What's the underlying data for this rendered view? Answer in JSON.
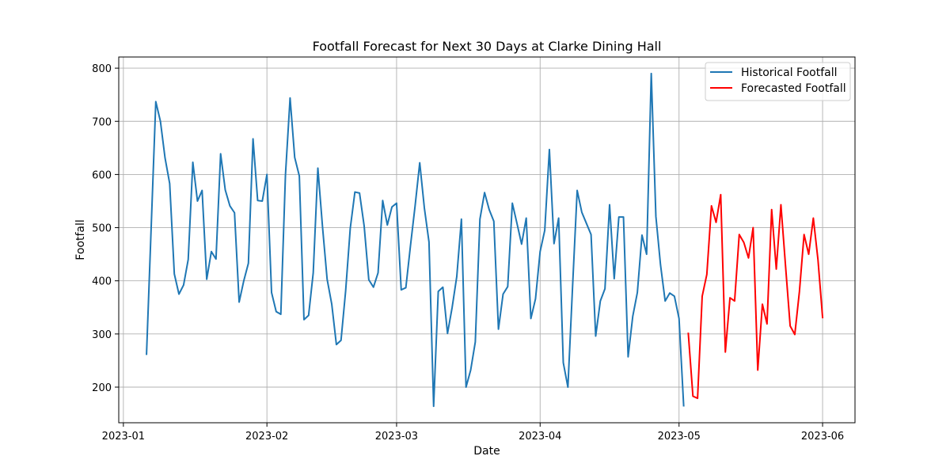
{
  "chart_data": {
    "type": "line",
    "title": "Footfall Forecast for Next 30 Days at Clarke Dining Hall",
    "xlabel": "Date",
    "ylabel": "Footfall",
    "xlim": [
      "2022-12-31",
      "2023-06-08"
    ],
    "ylim": [
      133,
      821
    ],
    "xticks": [
      "2023-01-01",
      "2023-02-01",
      "2023-03-01",
      "2023-04-01",
      "2023-05-01",
      "2023-06-01"
    ],
    "xtick_labels": [
      "2023-01",
      "2023-02",
      "2023-03",
      "2023-04",
      "2023-05",
      "2023-06"
    ],
    "yticks": [
      200,
      300,
      400,
      500,
      600,
      700,
      800
    ],
    "grid": true,
    "legend_position": "top-right",
    "series": [
      {
        "name": "Historical Footfall",
        "color": "#1f77b4",
        "points": [
          [
            "2023-01-06",
            262
          ],
          [
            "2023-01-08",
            737
          ],
          [
            "2023-01-09",
            700
          ],
          [
            "2023-01-10",
            631
          ],
          [
            "2023-01-11",
            583
          ],
          [
            "2023-01-12",
            413
          ],
          [
            "2023-01-13",
            375
          ],
          [
            "2023-01-14",
            392
          ],
          [
            "2023-01-15",
            440
          ],
          [
            "2023-01-16",
            623
          ],
          [
            "2023-01-17",
            550
          ],
          [
            "2023-01-18",
            570
          ],
          [
            "2023-01-19",
            403
          ],
          [
            "2023-01-20",
            455
          ],
          [
            "2023-01-21",
            441
          ],
          [
            "2023-01-22",
            639
          ],
          [
            "2023-01-23",
            571
          ],
          [
            "2023-01-24",
            541
          ],
          [
            "2023-01-25",
            528
          ],
          [
            "2023-01-26",
            360
          ],
          [
            "2023-01-27",
            400
          ],
          [
            "2023-01-28",
            433
          ],
          [
            "2023-01-29",
            667
          ],
          [
            "2023-01-30",
            551
          ],
          [
            "2023-01-31",
            550
          ],
          [
            "2023-02-01",
            600
          ],
          [
            "2023-02-02",
            378
          ],
          [
            "2023-02-03",
            342
          ],
          [
            "2023-02-04",
            337
          ],
          [
            "2023-02-05",
            599
          ],
          [
            "2023-02-06",
            744
          ],
          [
            "2023-02-07",
            632
          ],
          [
            "2023-02-08",
            597
          ],
          [
            "2023-02-09",
            327
          ],
          [
            "2023-02-10",
            335
          ],
          [
            "2023-02-11",
            415
          ],
          [
            "2023-02-12",
            612
          ],
          [
            "2023-02-13",
            502
          ],
          [
            "2023-02-14",
            403
          ],
          [
            "2023-02-15",
            356
          ],
          [
            "2023-02-16",
            280
          ],
          [
            "2023-02-17",
            288
          ],
          [
            "2023-02-18",
            381
          ],
          [
            "2023-02-19",
            499
          ],
          [
            "2023-02-20",
            567
          ],
          [
            "2023-02-21",
            565
          ],
          [
            "2023-02-22",
            503
          ],
          [
            "2023-02-23",
            402
          ],
          [
            "2023-02-24",
            388
          ],
          [
            "2023-02-25",
            415
          ],
          [
            "2023-02-26",
            551
          ],
          [
            "2023-02-27",
            505
          ],
          [
            "2023-02-28",
            539
          ],
          [
            "2023-03-01",
            546
          ],
          [
            "2023-03-02",
            383
          ],
          [
            "2023-03-03",
            387
          ],
          [
            "2023-03-04",
            466
          ],
          [
            "2023-03-05",
            541
          ],
          [
            "2023-03-06",
            622
          ],
          [
            "2023-03-07",
            537
          ],
          [
            "2023-03-08",
            473
          ],
          [
            "2023-03-09",
            164
          ],
          [
            "2023-03-10",
            380
          ],
          [
            "2023-03-11",
            388
          ],
          [
            "2023-03-12",
            301
          ],
          [
            "2023-03-13",
            350
          ],
          [
            "2023-03-14",
            408
          ],
          [
            "2023-03-15",
            516
          ],
          [
            "2023-03-16",
            200
          ],
          [
            "2023-03-17",
            232
          ],
          [
            "2023-03-18",
            285
          ],
          [
            "2023-03-19",
            516
          ],
          [
            "2023-03-20",
            566
          ],
          [
            "2023-03-21",
            534
          ],
          [
            "2023-03-22",
            512
          ],
          [
            "2023-03-23",
            309
          ],
          [
            "2023-03-24",
            375
          ],
          [
            "2023-03-25",
            389
          ],
          [
            "2023-03-26",
            546
          ],
          [
            "2023-03-27",
            508
          ],
          [
            "2023-03-28",
            469
          ],
          [
            "2023-03-29",
            518
          ],
          [
            "2023-03-30",
            329
          ],
          [
            "2023-03-31",
            366
          ],
          [
            "2023-04-01",
            455
          ],
          [
            "2023-04-02",
            495
          ],
          [
            "2023-04-03",
            647
          ],
          [
            "2023-04-04",
            470
          ],
          [
            "2023-04-05",
            518
          ],
          [
            "2023-04-06",
            246
          ],
          [
            "2023-04-07",
            200
          ],
          [
            "2023-04-08",
            388
          ],
          [
            "2023-04-09",
            570
          ],
          [
            "2023-04-10",
            529
          ],
          [
            "2023-04-11",
            508
          ],
          [
            "2023-04-12",
            487
          ],
          [
            "2023-04-13",
            296
          ],
          [
            "2023-04-14",
            362
          ],
          [
            "2023-04-15",
            385
          ],
          [
            "2023-04-16",
            543
          ],
          [
            "2023-04-17",
            404
          ],
          [
            "2023-04-18",
            520
          ],
          [
            "2023-04-19",
            520
          ],
          [
            "2023-04-20",
            257
          ],
          [
            "2023-04-21",
            333
          ],
          [
            "2023-04-22",
            378
          ],
          [
            "2023-04-23",
            486
          ],
          [
            "2023-04-24",
            450
          ],
          [
            "2023-04-25",
            790
          ],
          [
            "2023-04-26",
            521
          ],
          [
            "2023-04-27",
            430
          ],
          [
            "2023-04-28",
            362
          ],
          [
            "2023-04-29",
            377
          ],
          [
            "2023-04-30",
            371
          ],
          [
            "2023-05-01",
            329
          ],
          [
            "2023-05-02",
            165
          ]
        ]
      },
      {
        "name": "Forecasted Footfall",
        "color": "#ff0000",
        "points": [
          [
            "2023-05-03",
            301
          ],
          [
            "2023-05-04",
            183
          ],
          [
            "2023-05-05",
            179
          ],
          [
            "2023-05-06",
            371
          ],
          [
            "2023-05-07",
            412
          ],
          [
            "2023-05-08",
            541
          ],
          [
            "2023-05-09",
            510
          ],
          [
            "2023-05-10",
            562
          ],
          [
            "2023-05-11",
            266
          ],
          [
            "2023-05-12",
            368
          ],
          [
            "2023-05-13",
            362
          ],
          [
            "2023-05-14",
            487
          ],
          [
            "2023-05-15",
            472
          ],
          [
            "2023-05-16",
            443
          ],
          [
            "2023-05-17",
            500
          ],
          [
            "2023-05-18",
            232
          ],
          [
            "2023-05-19",
            356
          ],
          [
            "2023-05-20",
            319
          ],
          [
            "2023-05-21",
            534
          ],
          [
            "2023-05-22",
            422
          ],
          [
            "2023-05-23",
            543
          ],
          [
            "2023-05-24",
            428
          ],
          [
            "2023-05-25",
            315
          ],
          [
            "2023-05-26",
            299
          ],
          [
            "2023-05-27",
            380
          ],
          [
            "2023-05-28",
            487
          ],
          [
            "2023-05-29",
            450
          ],
          [
            "2023-05-30",
            518
          ],
          [
            "2023-05-31",
            440
          ],
          [
            "2023-06-01",
            331
          ]
        ]
      }
    ]
  }
}
